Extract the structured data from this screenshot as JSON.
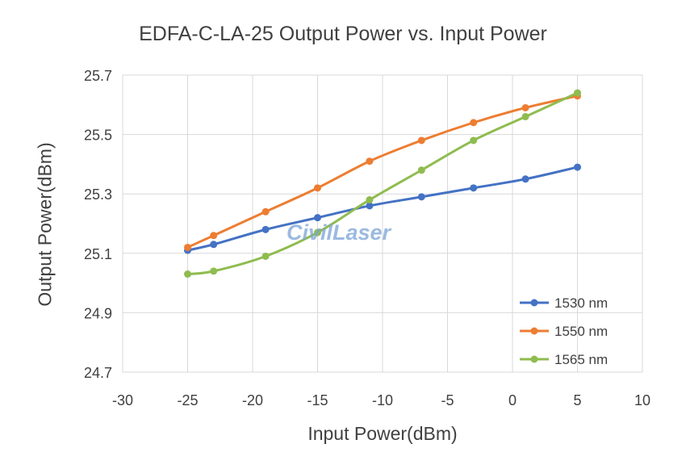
{
  "chart_data": {
    "type": "line",
    "title": "EDFA-C-LA-25  Output Power vs. Input Power",
    "xlabel": "Input Power(dBm)",
    "ylabel": "Output Power(dBm)",
    "xlim": [
      -30,
      10
    ],
    "ylim": [
      24.7,
      25.7
    ],
    "xticks": [
      -30,
      -25,
      -20,
      -15,
      -10,
      -5,
      0,
      5,
      10
    ],
    "yticks": [
      24.7,
      24.9,
      25.1,
      25.3,
      25.5,
      25.7
    ],
    "xtick_labels": [
      "-30",
      "-25",
      "-20",
      "-15",
      "-10",
      "-5",
      "0",
      "5",
      "10"
    ],
    "ytick_labels": [
      "24.7",
      "24.9",
      "25.1",
      "25.3",
      "25.5",
      "25.7"
    ],
    "grid": "vertical and horizontal",
    "legend_position": "bottom-right",
    "x": [
      -25,
      -23,
      -19,
      -15,
      -11,
      -7,
      -3,
      1,
      5
    ],
    "series": [
      {
        "name": "1530 nm",
        "color": "#4472c4",
        "values": [
          25.11,
          25.13,
          25.18,
          25.22,
          25.26,
          25.29,
          25.32,
          25.35,
          25.39
        ]
      },
      {
        "name": "1550 nm",
        "color": "#ed7d31",
        "values": [
          25.12,
          25.16,
          25.24,
          25.32,
          25.41,
          25.48,
          25.54,
          25.59,
          25.63
        ]
      },
      {
        "name": "1565 nm",
        "color": "#8fbc4f",
        "values": [
          25.03,
          25.04,
          25.09,
          25.17,
          25.28,
          25.38,
          25.48,
          25.56,
          25.64
        ]
      }
    ]
  },
  "watermark": "CivilLaser"
}
